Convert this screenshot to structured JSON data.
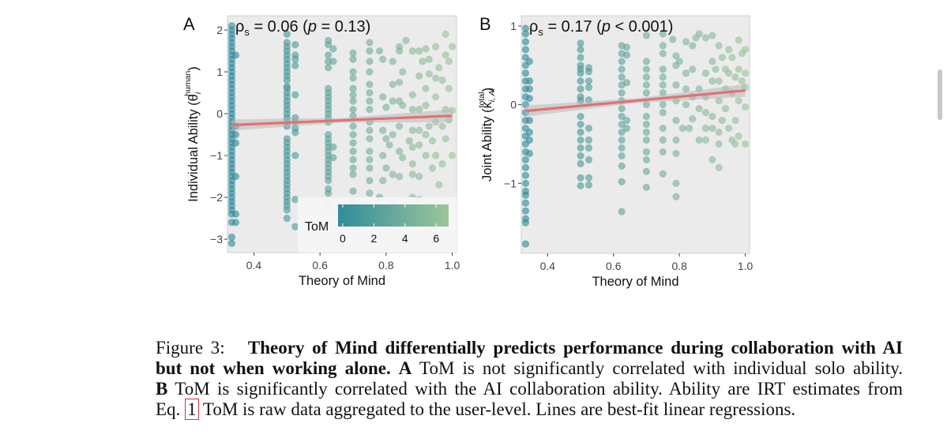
{
  "chart_data": [
    {
      "panel": "A",
      "type": "scatter",
      "annotation": "ρs = 0.06 (p = 0.13)",
      "annotation_parts": {
        "rho": "ρ",
        "sub": "s",
        "pre": " = 0.06 (",
        "p": "p",
        "post": " = 0.13)"
      },
      "xlabel": "Theory of Mind",
      "ylabel": {
        "main": "Individual Ability (θ",
        "sub": "i",
        "sup": "human",
        "close": ")"
      },
      "xlim": [
        0.32,
        1.013
      ],
      "ylim": [
        -3.32,
        2.34
      ],
      "xticks": [
        "0.4",
        "0.6",
        "0.8",
        "1.0"
      ],
      "xtick_values": [
        0.4,
        0.6,
        0.8,
        1.0
      ],
      "yticks": [
        "2",
        "1",
        "0",
        "−1",
        "−2",
        "−3"
      ],
      "ytick_values": [
        2,
        1,
        0,
        -1,
        -2,
        -3
      ],
      "grid": false,
      "regression": {
        "x": [
          0.333,
          1.0
        ],
        "y": [
          -0.27,
          -0.05
        ],
        "color": "#e07272"
      },
      "legend": {
        "title": "ToM",
        "ticks": [
          "0",
          "2",
          "4",
          "6"
        ],
        "tick_values": [
          0,
          2,
          4,
          6
        ],
        "range": [
          -0.3,
          6.8
        ],
        "placement": "bottom-right"
      },
      "columns": [
        {
          "x": 0.333,
          "y": [
            2.1,
            2.0,
            1.9,
            1.8,
            1.7,
            1.6,
            1.5,
            1.4,
            1.3,
            1.2,
            1.1,
            1.0,
            0.9,
            0.8,
            0.7,
            0.6,
            0.5,
            0.4,
            0.3,
            0.2,
            0.1,
            0,
            -0.1,
            -0.2,
            -0.3,
            -0.4,
            -0.5,
            -0.6,
            -0.7,
            -0.8,
            -0.9,
            -1.0,
            -1.1,
            -1.2,
            -1.3,
            -1.4,
            -1.5,
            -1.6,
            -1.7,
            -1.8,
            -1.9,
            -2.0,
            -2.1,
            -2.2,
            -2.3,
            -2.4,
            -2.6,
            -2.95,
            -3.1
          ]
        },
        {
          "x": 0.345,
          "y": [
            1.4,
            -0.3,
            -0.5,
            -0.7,
            -1.5,
            -2.4,
            -2.6
          ]
        },
        {
          "x": 0.5,
          "y": [
            1.9,
            1.7,
            1.6,
            1.5,
            1.4,
            1.3,
            1.2,
            1.1,
            1.0,
            0.9,
            0.8,
            0.65,
            0.6,
            0.5,
            0.4,
            0.3,
            0.2,
            0.1,
            0,
            -0.1,
            -0.2,
            -0.3,
            -0.6,
            -0.7,
            -0.8,
            -0.9,
            -1.0,
            -1.1,
            -1.2,
            -1.3,
            -1.4,
            -1.5,
            -1.6,
            -1.7,
            -1.8,
            -1.9,
            -2.0,
            -2.1,
            -2.2,
            -2.3,
            -2.5
          ]
        },
        {
          "x": 0.525,
          "y": [
            1.65,
            1.4,
            1.3,
            1.15,
            0.45,
            -0.1,
            -0.2,
            -0.35,
            -0.45,
            -1.0,
            -2.05,
            -2.7
          ]
        },
        {
          "x": 0.625,
          "y": [
            1.75,
            1.65,
            1.4,
            1.25,
            1.1,
            0.6,
            0.5,
            0.4,
            0.3,
            0.2,
            0.1,
            0,
            -0.1,
            -0.2,
            -0.5,
            -0.6,
            -0.7,
            -0.8,
            -0.9,
            -1.0,
            -1.1,
            -1.2,
            -1.3,
            -1.4,
            -1.5,
            -1.6,
            -1.8,
            -1.9,
            -2.2
          ]
        },
        {
          "x": 0.64,
          "y": [
            1.55,
            1.25,
            -0.8,
            -1.05
          ]
        },
        {
          "x": 0.7,
          "y": [
            1.45,
            1.3,
            1.0,
            0.85,
            0.6,
            0.45,
            0.3,
            0.1,
            -0.05,
            -0.3,
            -0.5,
            -0.7,
            -0.9,
            -1.1,
            -1.3,
            -1.45,
            -1.85,
            -2.1
          ]
        },
        {
          "x": 0.75,
          "y": [
            1.7,
            1.5,
            1.25,
            1.0,
            0.7,
            0.5,
            0.3,
            0.1,
            -0.2,
            -0.4,
            -0.6,
            -0.9,
            -1.1,
            -1.3,
            -1.6,
            -1.9,
            -2.2
          ]
        }
      ],
      "points": [
        [
          0.78,
          1.5
        ],
        [
          0.79,
          1.3
        ],
        [
          0.79,
          0.4
        ],
        [
          0.8,
          0.15
        ],
        [
          0.79,
          -0.4
        ],
        [
          0.8,
          -0.6
        ],
        [
          0.79,
          -1.0
        ],
        [
          0.8,
          -1.3
        ],
        [
          0.79,
          -1.6
        ],
        [
          0.78,
          -2.0
        ],
        [
          0.81,
          -0.75
        ],
        [
          0.82,
          1.25
        ],
        [
          0.82,
          0.7
        ],
        [
          0.82,
          0.3
        ],
        [
          0.82,
          -0.5
        ],
        [
          0.82,
          -1.45
        ],
        [
          0.84,
          1.6
        ],
        [
          0.84,
          1.5
        ],
        [
          0.84,
          0.75
        ],
        [
          0.84,
          0.3
        ],
        [
          0.84,
          -0.3
        ],
        [
          0.84,
          -0.9
        ],
        [
          0.84,
          -1.5
        ],
        [
          0.85,
          1.0
        ],
        [
          0.85,
          0.2
        ],
        [
          0.85,
          -1.05
        ],
        [
          0.86,
          1.75
        ],
        [
          0.87,
          -0.65
        ],
        [
          0.88,
          1.5
        ],
        [
          0.88,
          0.45
        ],
        [
          0.88,
          0.1
        ],
        [
          0.88,
          -0.4
        ],
        [
          0.88,
          -0.8
        ],
        [
          0.88,
          -1.2
        ],
        [
          0.88,
          -1.45
        ],
        [
          0.88,
          -2.0
        ],
        [
          0.9,
          1.5
        ],
        [
          0.9,
          0.9
        ],
        [
          0.9,
          0.1
        ],
        [
          0.9,
          -0.4
        ],
        [
          0.9,
          -0.75
        ],
        [
          0.9,
          -1.5
        ],
        [
          0.91,
          1.25
        ],
        [
          0.92,
          1.55
        ],
        [
          0.92,
          0.6
        ],
        [
          0.92,
          0.2
        ],
        [
          0.92,
          -0.5
        ],
        [
          0.92,
          -1.0
        ],
        [
          0.93,
          1.3
        ],
        [
          0.93,
          0.95
        ],
        [
          0.93,
          -0.3
        ],
        [
          0.94,
          -1.3
        ],
        [
          0.94,
          -0.65
        ],
        [
          0.95,
          1.6
        ],
        [
          0.95,
          0.85
        ],
        [
          0.95,
          0.4
        ],
        [
          0.95,
          -0.2
        ],
        [
          0.95,
          -1.0
        ],
        [
          0.96,
          -1.7
        ],
        [
          0.96,
          1.1
        ],
        [
          0.97,
          0.8
        ],
        [
          0.97,
          -0.3
        ],
        [
          0.97,
          -1.2
        ],
        [
          0.98,
          1.9
        ],
        [
          0.98,
          1.4
        ],
        [
          0.98,
          0.1
        ],
        [
          0.98,
          -0.6
        ],
        [
          0.99,
          1.25
        ],
        [
          0.99,
          0.6
        ],
        [
          0.99,
          -0.15
        ],
        [
          1.0,
          1.6
        ],
        [
          1.0,
          0.08
        ],
        [
          1.0,
          -1.0
        ],
        [
          0.97,
          -2.15
        ],
        [
          0.9,
          -2.05
        ],
        [
          0.82,
          -2.1
        ]
      ]
    },
    {
      "panel": "B",
      "type": "scatter",
      "annotation": "ρs = 0.17 (p < 0.001)",
      "annotation_parts": {
        "rho": "ρ",
        "sub": "s",
        "pre": " = 0.17 (",
        "p": "p",
        "post": " < 0.001)"
      },
      "xlabel": "Theory of Mind",
      "ylabel": {
        "main": "Joint Ability (κ",
        "sub": "i, AI",
        "sup": "total",
        "close": ")"
      },
      "xlim": [
        0.32,
        1.013
      ],
      "ylim": [
        -1.89,
        1.13
      ],
      "xticks": [
        "0.4",
        "0.6",
        "0.8",
        "1.0"
      ],
      "xtick_values": [
        0.4,
        0.6,
        0.8,
        1.0
      ],
      "yticks": [
        "1",
        "0",
        "−1"
      ],
      "ytick_values": [
        1,
        0,
        -1
      ],
      "grid": false,
      "regression": {
        "x": [
          0.333,
          1.0
        ],
        "y": [
          -0.08,
          0.18
        ],
        "color": "#e07272"
      },
      "columns": [
        {
          "x": 0.333,
          "y": [
            0.97,
            0.9,
            0.8,
            0.7,
            0.6,
            0.5,
            0.4,
            0.3,
            0.2,
            0.1,
            0.0,
            -0.1,
            -0.2,
            -0.3,
            -0.4,
            -0.5,
            -0.6,
            -0.7,
            -0.8,
            -0.9,
            -1.0,
            -1.1,
            -1.15,
            -1.25,
            -1.35,
            -1.45,
            -1.5,
            -1.77
          ]
        },
        {
          "x": 0.345,
          "y": [
            0.55,
            0.3,
            0.2,
            0.08,
            -0.2,
            -0.35,
            -0.45,
            -0.62
          ]
        },
        {
          "x": 0.5,
          "y": [
            0.78,
            0.7,
            0.6,
            0.5,
            0.45,
            0.4,
            0.3,
            0.2,
            0.1,
            0.05,
            -0.15,
            -0.25,
            -0.35,
            -0.45,
            -0.55,
            -0.65,
            -0.75,
            -0.93,
            -1.03
          ]
        },
        {
          "x": 0.525,
          "y": [
            0.47,
            0.42,
            0.3,
            0.22,
            0.06,
            -0.3,
            -0.45,
            -0.55,
            -0.7,
            -0.93,
            -1.02
          ]
        },
        {
          "x": 0.625,
          "y": [
            0.75,
            0.65,
            0.55,
            0.45,
            0.35,
            0.25,
            0.15,
            0.05,
            -0.05,
            -0.15,
            -0.25,
            -0.35,
            -0.45,
            -0.55,
            -0.65,
            -0.78,
            -0.98,
            -1.36
          ]
        },
        {
          "x": 0.64,
          "y": [
            0.73,
            0.63,
            0.28,
            -0.2,
            -0.3
          ]
        },
        {
          "x": 0.7,
          "y": [
            0.88,
            0.55,
            0.45,
            0.35,
            0.25,
            0.15,
            0.0,
            -0.15,
            -0.25,
            -0.35,
            -0.45,
            -0.6,
            -0.7,
            -0.85,
            -1.05
          ]
        },
        {
          "x": 0.75,
          "y": [
            0.9,
            0.75,
            0.65,
            0.45,
            0.35,
            0.25,
            0.15,
            0.0,
            -0.1,
            -0.3,
            -0.45,
            -0.6,
            -0.88
          ]
        }
      ],
      "points": [
        [
          0.78,
          0.83
        ],
        [
          0.79,
          0.62
        ],
        [
          0.79,
          0.5
        ],
        [
          0.79,
          0.25
        ],
        [
          0.79,
          0.05
        ],
        [
          0.79,
          -0.2
        ],
        [
          0.79,
          -0.45
        ],
        [
          0.79,
          -0.62
        ],
        [
          0.79,
          -1.0
        ],
        [
          0.79,
          -1.17
        ],
        [
          0.8,
          0.55
        ],
        [
          0.81,
          -0.3
        ],
        [
          0.82,
          0.8
        ],
        [
          0.82,
          0.4
        ],
        [
          0.82,
          0.2
        ],
        [
          0.82,
          0.0
        ],
        [
          0.83,
          -0.3
        ],
        [
          0.84,
          0.75
        ],
        [
          0.84,
          0.45
        ],
        [
          0.84,
          0.1
        ],
        [
          0.84,
          -0.18
        ],
        [
          0.85,
          0.85
        ],
        [
          0.86,
          0.9
        ],
        [
          0.86,
          0.2
        ],
        [
          0.86,
          -0.05
        ],
        [
          0.86,
          -0.45
        ],
        [
          0.88,
          0.85
        ],
        [
          0.88,
          0.4
        ],
        [
          0.88,
          0.1
        ],
        [
          0.88,
          -0.1
        ],
        [
          0.88,
          -0.3
        ],
        [
          0.88,
          -0.45
        ],
        [
          0.9,
          0.88
        ],
        [
          0.9,
          0.55
        ],
        [
          0.9,
          0.3
        ],
        [
          0.9,
          -0.15
        ],
        [
          0.9,
          -0.3
        ],
        [
          0.9,
          -0.7
        ],
        [
          0.91,
          0.45
        ],
        [
          0.92,
          0.75
        ],
        [
          0.92,
          0.3
        ],
        [
          0.92,
          0.05
        ],
        [
          0.92,
          -0.35
        ],
        [
          0.92,
          -0.5
        ],
        [
          0.92,
          -0.8
        ],
        [
          0.93,
          0.6
        ],
        [
          0.93,
          -0.2
        ],
        [
          0.94,
          0.45
        ],
        [
          0.94,
          0.2
        ],
        [
          0.94,
          -0.05
        ],
        [
          0.95,
          0.7
        ],
        [
          0.95,
          0.4
        ],
        [
          0.95,
          -0.3
        ],
        [
          0.96,
          0.6
        ],
        [
          0.96,
          0.15
        ],
        [
          0.96,
          -0.45
        ],
        [
          0.97,
          0.35
        ],
        [
          0.97,
          -0.2
        ],
        [
          0.97,
          -0.5
        ],
        [
          0.98,
          0.82
        ],
        [
          0.98,
          0.45
        ],
        [
          0.98,
          0.05
        ],
        [
          0.98,
          -0.4
        ],
        [
          0.99,
          0.65
        ],
        [
          0.99,
          0.3
        ],
        [
          1.0,
          0.7
        ],
        [
          1.0,
          0.4
        ],
        [
          1.0,
          0.22
        ],
        [
          1.0,
          -0.03
        ],
        [
          1.0,
          -0.5
        ]
      ]
    }
  ],
  "colors": {
    "point_low": "#2f8c9c",
    "point_high": "#9dc59a",
    "panel_bg": "#ebebeb",
    "regression": "#e07272",
    "ci_band": "#b8b8b8"
  },
  "caption": {
    "line1": {
      "label": "Figure 3:",
      "bold": "Theory of Mind differentially predicts performance during collaboration with AI"
    },
    "line2": {
      "bold1": "but not when working alone.",
      "bold2": "A",
      "text": " ToM is not significantly correlated with individual solo ability."
    },
    "line3": {
      "bold": "B",
      "text": " ToM is significantly correlated with the AI collaboration ability. Ability are IRT estimates from"
    },
    "line4": {
      "pre": "Eq. ",
      "ref": "1",
      "text": " ToM is raw data aggregated to the user-level. Lines are best-fit linear regressions."
    }
  }
}
